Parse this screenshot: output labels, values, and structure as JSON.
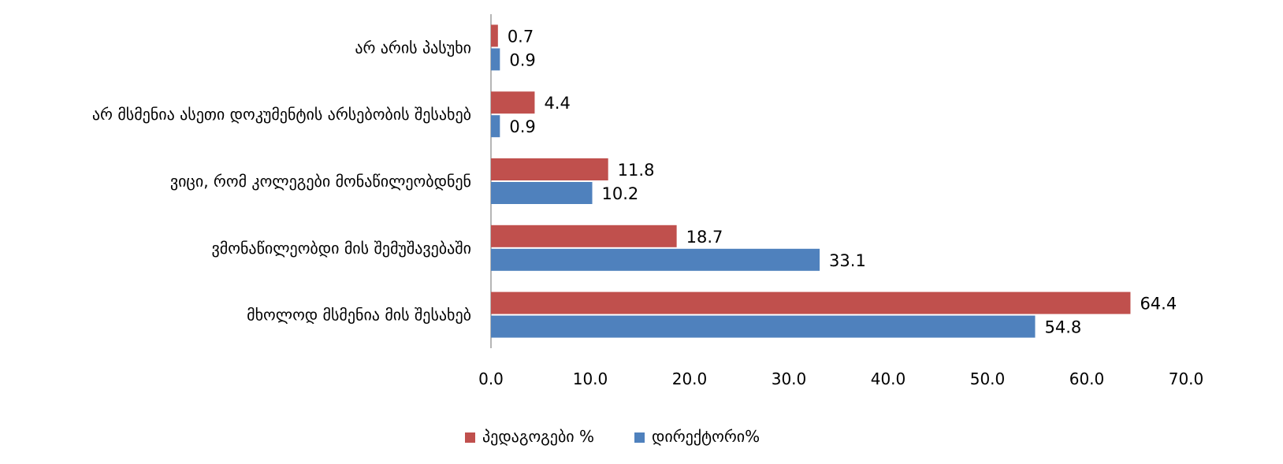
{
  "chart_data": {
    "type": "bar",
    "orientation": "horizontal",
    "categories": [
      "არ არის პასუხი",
      "არ მსმენია ასეთი დოკუმენტის არსებობის შესახებ",
      "ვიცი, რომ კოლეგები მონაწილეობდნენ",
      "ვმონაწილეობდი მის შემუშავებაში",
      "მხოლოდ მსმენია მის შესახებ"
    ],
    "series": [
      {
        "name": "პედაგოგები %",
        "color": "#C0504D",
        "values": [
          0.7,
          4.4,
          11.8,
          18.7,
          64.4
        ]
      },
      {
        "name": "დირექტორი%",
        "color": "#4F81BD",
        "values": [
          0.9,
          0.9,
          10.2,
          33.1,
          54.8
        ]
      }
    ],
    "xlim": [
      0,
      70
    ],
    "xticks": [
      "0.0",
      "10.0",
      "20.0",
      "30.0",
      "40.0",
      "50.0",
      "60.0",
      "70.0"
    ],
    "value_labels": [
      [
        "0.7",
        "4.4",
        "11.8",
        "18.7",
        "64.4"
      ],
      [
        "0.9",
        "0.9",
        "10.2",
        "33.1",
        "54.8"
      ]
    ],
    "grid": false,
    "legend_position": "bottom",
    "title": "",
    "xlabel": "",
    "ylabel": ""
  }
}
